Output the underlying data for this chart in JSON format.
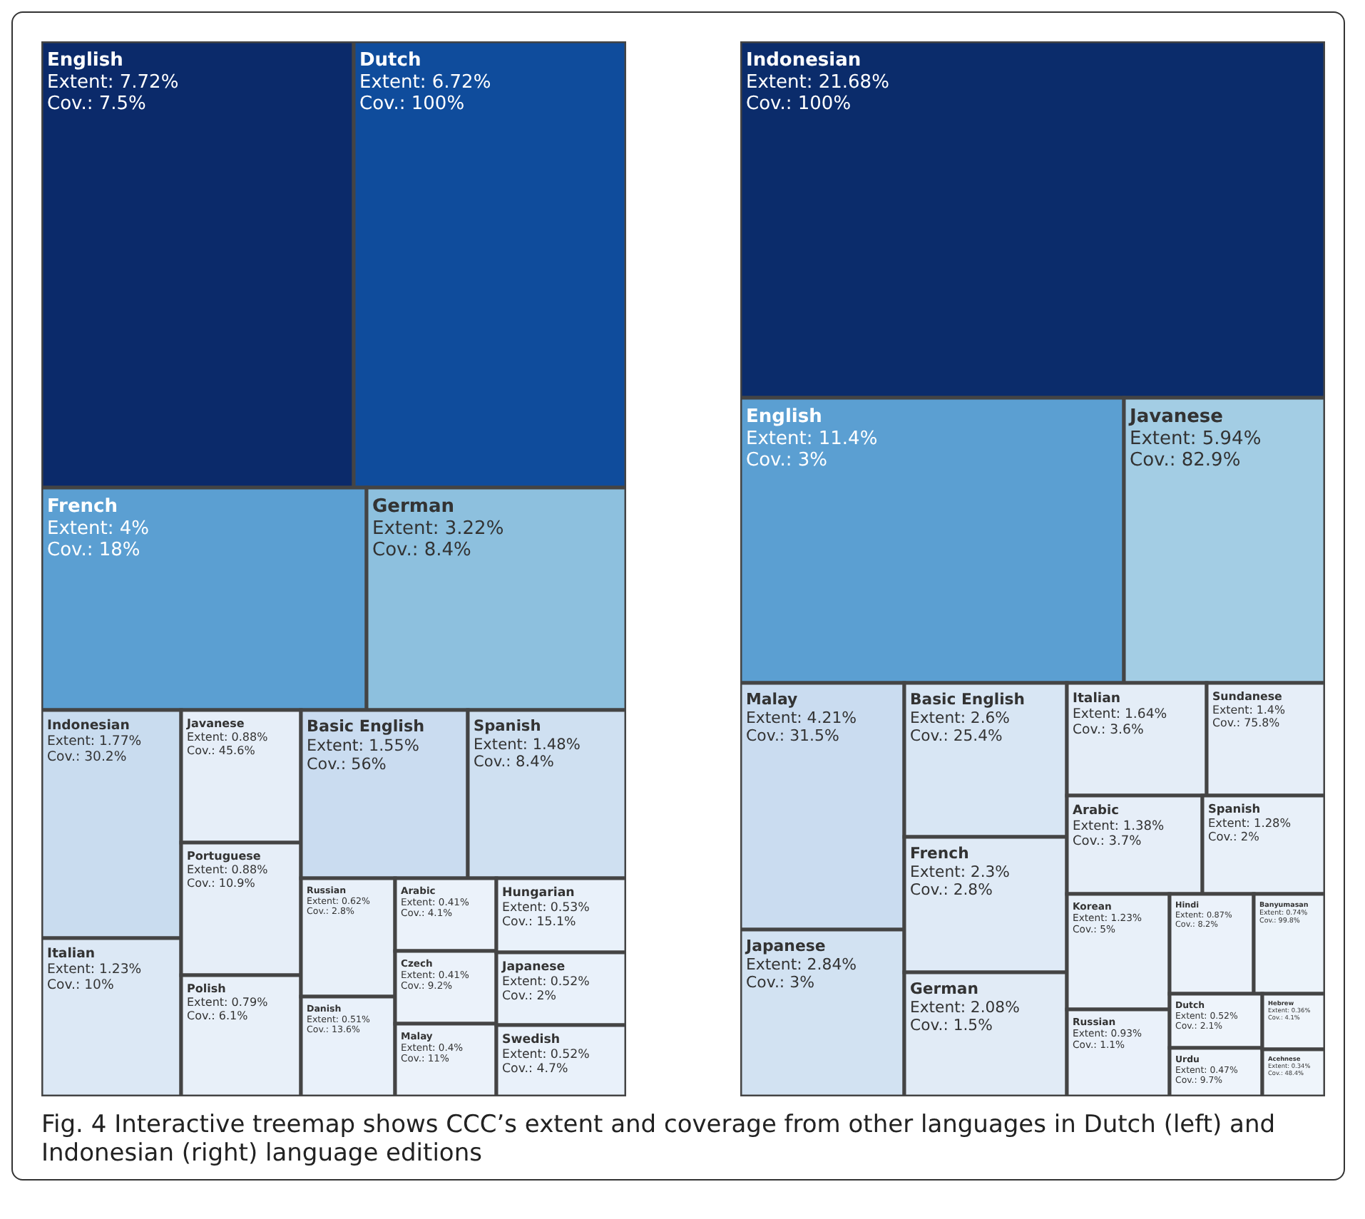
{
  "chart_data": [
    {
      "type": "other",
      "categories": [
        "English",
        "Dutch",
        "French",
        "German",
        "Indonesian",
        "Italian",
        "Javanese",
        "Portuguese",
        "Polish",
        "Basic English",
        "Spanish",
        "Russian",
        "Danish",
        "Arabic",
        "Czech",
        "Malay",
        "Hungarian",
        "Japanese",
        "Swedish"
      ],
      "series": [
        {
          "name": "Extent:",
          "colors": [
            "#0b2a6a",
            "#0f4c9c",
            "#5b9fd2",
            "#8dc0de",
            "#c9dcef",
            "#dce8f5",
            "#e6eef8",
            "#e6eef8",
            "#e8f0f9",
            "#cadcf0",
            "#cfe0f1",
            "#e8f0f9",
            "#e9f1fa",
            "#ebf2fa",
            "#ebf2fa",
            "#ebf2fa",
            "#e9f1fa",
            "#e9f1fa",
            "#e9f1fa"
          ],
          "values": [
            7.72,
            6.72,
            4,
            3.22,
            1.77,
            1.23,
            0.88,
            0.88,
            0.79,
            1.55,
            1.48,
            0.62,
            0.51,
            0.41,
            0.41,
            0.4,
            0.53,
            0.52,
            0.52
          ],
          "value_labels": [
            "7.72%",
            "6.72%",
            "4%",
            "3.22%",
            "1.77%",
            "1.23%",
            "0.88%",
            "0.88%",
            "0.79%",
            "1.55%",
            "1.48%",
            "0.62%",
            "0.51%",
            "0.41%",
            "0.41%",
            "0.4%",
            "0.53%",
            "0.52%",
            "0.52%"
          ]
        },
        {
          "name": "Cov.:",
          "values": [
            7.5,
            100,
            18,
            8.4,
            30.2,
            10,
            45.6,
            10.9,
            6.1,
            56,
            8.4,
            2.8,
            13.6,
            4.1,
            9.2,
            11,
            15.1,
            2,
            4.7
          ],
          "value_labels": [
            "7.5%",
            "100%",
            "18%",
            "8.4%",
            "30.2%",
            "10%",
            "45.6%",
            "10.9%",
            "6.1%",
            "56%",
            "8.4%",
            "2.8%",
            "13.6%",
            "4.1%",
            "9.2%",
            "11%",
            "15.1%",
            "2%",
            "4.7%"
          ]
        }
      ]
    },
    {
      "type": "other",
      "categories": [
        "Indonesian",
        "English",
        "Javanese",
        "Malay",
        "Japanese",
        "Basic English",
        "French",
        "German",
        "Italian",
        "Sundanese",
        "Arabic",
        "Spanish",
        "Korean",
        "Russian",
        "Hindi",
        "Banyumasan",
        "Dutch",
        "Urdu",
        "Hebrew",
        "Acehnese"
      ],
      "series": [
        {
          "name": "Extent:",
          "colors": [
            "#0b2c6b",
            "#5b9fd2",
            "#a3cde4",
            "#cadcf0",
            "#d2e2f2",
            "#d8e6f4",
            "#dfeaf6",
            "#e1ebf6",
            "#e4edf7",
            "#e6eef8",
            "#e6eef8",
            "#e8f0f9",
            "#e8f0f9",
            "#eaf1fa",
            "#ebf2fa",
            "#ecf3fa",
            "#eef4fb",
            "#eef4fb",
            "#eff5fb",
            "#eff5fb"
          ],
          "values": [
            21.68,
            11.4,
            5.94,
            4.21,
            2.84,
            2.6,
            2.3,
            2.08,
            1.64,
            1.4,
            1.38,
            1.28,
            1.23,
            0.93,
            0.87,
            0.74,
            0.52,
            0.47,
            0.36,
            0.34
          ],
          "value_labels": [
            "21.68%",
            "11.4%",
            "5.94%",
            "4.21%",
            "2.84%",
            "2.6%",
            "2.3%",
            "2.08%",
            "1.64%",
            "1.4%",
            "1.38%",
            "1.28%",
            "1.23%",
            "0.93%",
            "0.87%",
            "0.74%",
            "0.52%",
            "0.47%",
            "0.36%",
            "0.34%"
          ]
        },
        {
          "name": "Cov.:",
          "values": [
            100,
            3,
            82.9,
            31.5,
            3,
            25.4,
            2.8,
            1.5,
            3.6,
            75.8,
            3.7,
            2,
            5,
            1.1,
            8.2,
            99.8,
            2.1,
            9.7,
            4.1,
            48.4
          ],
          "value_labels": [
            "100%",
            "3%",
            "82.9%",
            "31.5%",
            "3%",
            "25.4%",
            "2.8%",
            "1.5%",
            "3.6%",
            "75.8%",
            "3.7%",
            "2%",
            "5%",
            "1.1%",
            "8.2%",
            "99.8%",
            "2.1%",
            "9.7%",
            "4.1%",
            "48.4%"
          ]
        }
      ],
      "annotations": [
        "Fig. 4 Interactive treemap shows CCC’s extent and coverage from other languages in Dutch (left) and Indonesian (right) language editions"
      ]
    }
  ]
}
